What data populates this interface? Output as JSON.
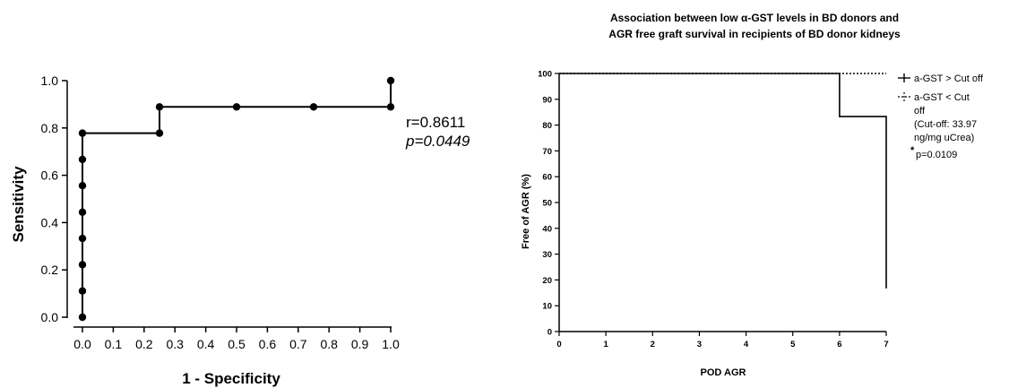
{
  "chart_data": [
    {
      "type": "line",
      "subtype": "roc-curve",
      "title": "",
      "xlabel": "1 - Specificity",
      "ylabel": "Sensitivity",
      "xlim": [
        0,
        1
      ],
      "ylim": [
        0,
        1
      ],
      "xticks": [
        "0.0",
        "0.1",
        "0.2",
        "0.3",
        "0.4",
        "0.5",
        "0.6",
        "0.7",
        "0.8",
        "0.9",
        "1.0"
      ],
      "yticks": [
        "0.0",
        "0.2",
        "0.4",
        "0.6",
        "0.8",
        "1.0"
      ],
      "series": [
        {
          "points": [
            [
              0,
              0
            ],
            [
              0,
              0.111
            ],
            [
              0,
              0.222
            ],
            [
              0,
              0.333
            ],
            [
              0,
              0.444
            ],
            [
              0,
              0.556
            ],
            [
              0,
              0.667
            ],
            [
              0,
              0.778
            ],
            [
              0.25,
              0.778
            ],
            [
              0.25,
              0.889
            ],
            [
              0.5,
              0.889
            ],
            [
              0.75,
              0.889
            ],
            [
              1.0,
              0.889
            ],
            [
              1.0,
              1.0
            ]
          ]
        }
      ],
      "annotations": {
        "r": "r=0.8611",
        "p": "p=0.0449"
      },
      "grid": false
    },
    {
      "type": "line",
      "subtype": "kaplan-meier",
      "title": "Association between low α-GST levels  in BD donors and",
      "title_line2": "AGR free graft survival in recipients of BD donor kidneys",
      "xlabel": "POD AGR",
      "ylabel": "Free of AGR (%)",
      "xlim": [
        0,
        7
      ],
      "ylim": [
        0,
        100
      ],
      "xticks": [
        "0",
        "1",
        "2",
        "3",
        "4",
        "5",
        "6",
        "7"
      ],
      "yticks": [
        "0",
        "10",
        "20",
        "30",
        "40",
        "50",
        "60",
        "70",
        "80",
        "90",
        "100"
      ],
      "series": [
        {
          "name": "a-GST > Cut off",
          "points": [
            [
              0,
              100
            ],
            [
              6,
              100
            ],
            [
              6,
              83.3
            ],
            [
              7,
              83.3
            ],
            [
              7,
              16.7
            ]
          ],
          "style": "solid"
        },
        {
          "name": "a-GST < Cut off",
          "points": [
            [
              0,
              100
            ],
            [
              7,
              100
            ]
          ],
          "style": "dotted"
        }
      ],
      "legend": {
        "position": "right",
        "entries": [
          "a-GST > Cut off",
          "a-GST < Cut",
          "off"
        ],
        "note_lines": [
          "(Cut-off: 33.97",
          "ng/mg uCrea)"
        ],
        "star": "*",
        "pvalue": "p=0.0109"
      },
      "grid": false
    }
  ]
}
